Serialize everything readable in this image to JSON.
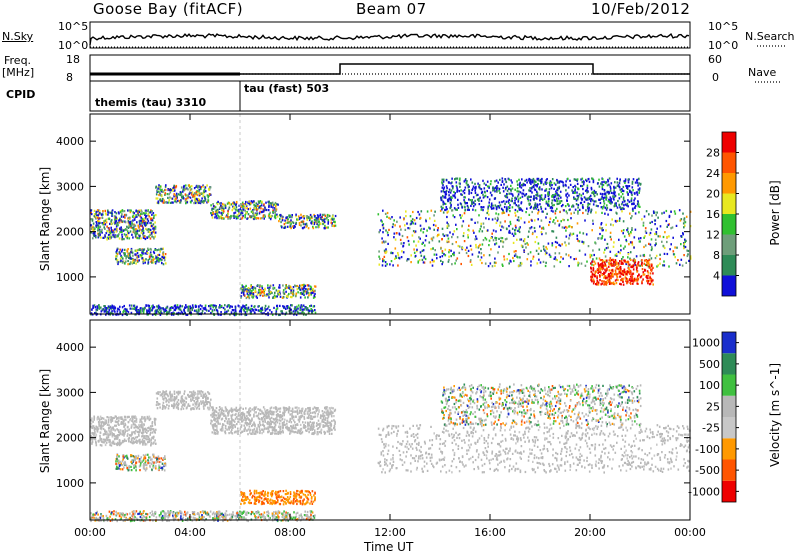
{
  "header": {
    "station": "Goose Bay (fitACF)",
    "beam": "Beam 07",
    "date": "10/Feb/2012"
  },
  "left_labels": {
    "nsky": "N.Sky",
    "freq_line1": "Freq.",
    "freq_line2": "[MHz]",
    "cpid": "CPID",
    "nsky_ticks": [
      "10^5",
      "10^0"
    ],
    "freq_ticks": [
      "18",
      "8"
    ]
  },
  "right_labels": {
    "nsearch": "N.Search",
    "nave": "Nave",
    "nsearch_ticks": [
      "10^5",
      "10^0"
    ],
    "nave_ticks": [
      "60",
      "0"
    ]
  },
  "cpid_modes": [
    {
      "label": "themis (tau) 3310",
      "start_hour": 0,
      "end_hour": 6
    },
    {
      "label": "tau (fast) 503",
      "start_hour": 6,
      "end_hour": 24
    }
  ],
  "chart_data": [
    {
      "type": "heatmap",
      "name": "power",
      "ylabel": "Slant Range [km]",
      "xlabel": "Time UT",
      "x_range_hours": [
        0,
        24
      ],
      "ylim": [
        180,
        4600
      ],
      "y_ticks": [
        1000,
        2000,
        3000,
        4000
      ],
      "x_ticks": [
        "00:00",
        "04:00",
        "08:00",
        "12:00",
        "16:00",
        "20:00",
        "00:00"
      ],
      "colorbar": {
        "label": "Power [dB]",
        "ticks": [
          4,
          8,
          12,
          16,
          20,
          24,
          28
        ],
        "colors": [
          "#1010d8",
          "#2e8b57",
          "#6e9e7a",
          "#30c030",
          "#e8e820",
          "#ff9900",
          "#ff5500",
          "#ee0000"
        ]
      },
      "scatter_regions": [
        {
          "h0": 0.0,
          "h1": 2.6,
          "r0": 1850,
          "r1": 2500,
          "level": "mixed"
        },
        {
          "h0": 2.6,
          "h1": 4.8,
          "r0": 2650,
          "r1": 3050,
          "level": "mixed"
        },
        {
          "h0": 4.8,
          "h1": 7.5,
          "r0": 2300,
          "r1": 2700,
          "level": "mixed"
        },
        {
          "h0": 7.5,
          "h1": 9.8,
          "r0": 2100,
          "r1": 2400,
          "level": "mixed"
        },
        {
          "h0": 1.0,
          "h1": 3.0,
          "r0": 1300,
          "r1": 1650,
          "level": "mixed"
        },
        {
          "h0": 6.0,
          "h1": 9.0,
          "r0": 550,
          "r1": 850,
          "level": "mixed"
        },
        {
          "h0": 0.0,
          "h1": 9.0,
          "r0": 180,
          "r1": 400,
          "level": "low"
        },
        {
          "h0": 11.5,
          "h1": 24.0,
          "r0": 1250,
          "r1": 2500,
          "level": "mixed"
        },
        {
          "h0": 20.0,
          "h1": 22.5,
          "r0": 850,
          "r1": 1400,
          "level": "high"
        },
        {
          "h0": 14.0,
          "h1": 22.0,
          "r0": 2500,
          "r1": 3200,
          "level": "low"
        }
      ]
    },
    {
      "type": "heatmap",
      "name": "velocity",
      "ylabel": "Slant Range [km]",
      "xlabel": "Time UT",
      "x_range_hours": [
        0,
        24
      ],
      "ylim": [
        180,
        4600
      ],
      "y_ticks": [
        1000,
        2000,
        3000,
        4000
      ],
      "x_ticks": [
        "00:00",
        "04:00",
        "08:00",
        "12:00",
        "16:00",
        "20:00",
        "00:00"
      ],
      "colorbar": {
        "label": "Velocity [m s^-1]",
        "ticks": [
          "1000",
          "500",
          "100",
          "25",
          "-25",
          "-100",
          "-500",
          "-1000"
        ],
        "colors": [
          "#1a2ecc",
          "#2e8b57",
          "#40c040",
          "#b8b8b8",
          "#c8c8c8",
          "#ff9900",
          "#ff5500",
          "#ee0000"
        ]
      },
      "scatter_regions": [
        {
          "h0": 0.0,
          "h1": 2.6,
          "r0": 1850,
          "r1": 2500,
          "level": "ground"
        },
        {
          "h0": 2.6,
          "h1": 4.8,
          "r0": 2650,
          "r1": 3050,
          "level": "ground"
        },
        {
          "h0": 4.8,
          "h1": 9.8,
          "r0": 2100,
          "r1": 2700,
          "level": "ground"
        },
        {
          "h0": 1.0,
          "h1": 3.0,
          "r0": 1300,
          "r1": 1650,
          "level": "mixed"
        },
        {
          "h0": 6.0,
          "h1": 9.0,
          "r0": 550,
          "r1": 850,
          "level": "neg"
        },
        {
          "h0": 0.0,
          "h1": 9.0,
          "r0": 180,
          "r1": 400,
          "level": "mixed"
        },
        {
          "h0": 11.5,
          "h1": 24.0,
          "r0": 1250,
          "r1": 2300,
          "level": "ground"
        },
        {
          "h0": 14.0,
          "h1": 22.0,
          "r0": 2300,
          "r1": 3200,
          "level": "mixed"
        }
      ]
    }
  ]
}
